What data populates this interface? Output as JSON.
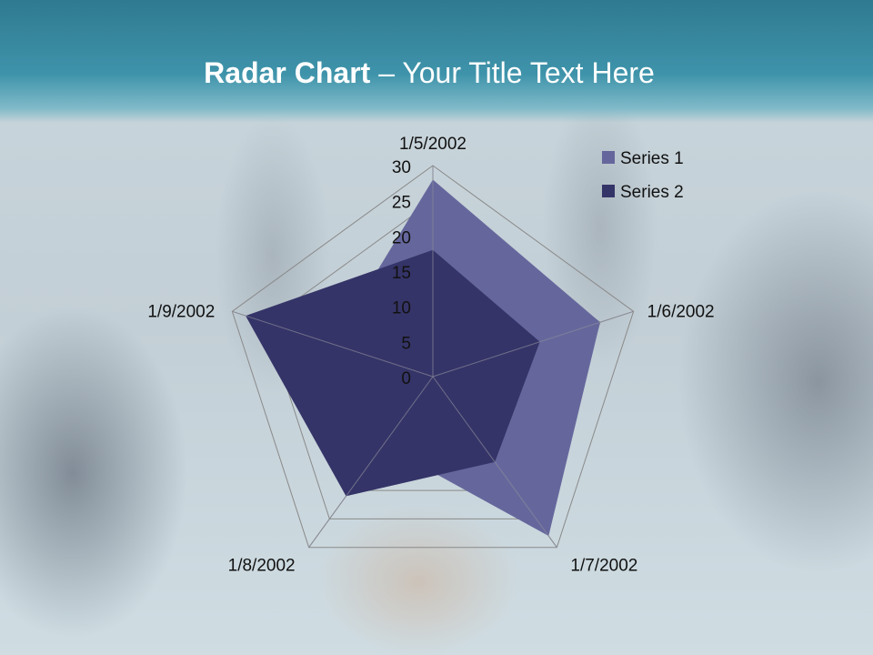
{
  "slide": {
    "title_bold": "Radar Chart",
    "title_rest": " – Your Title Text Here"
  },
  "chart_data": {
    "type": "radar",
    "categories": [
      "1/5/2002",
      "1/6/2002",
      "1/7/2002",
      "1/8/2002",
      "1/9/2002"
    ],
    "series": [
      {
        "name": "Series 1",
        "values": [
          28,
          25,
          28,
          12,
          15
        ],
        "color": "#65679c"
      },
      {
        "name": "Series 2",
        "values": [
          18,
          16,
          15,
          21,
          28
        ],
        "color": "#353468"
      }
    ],
    "rlim": [
      0,
      30
    ],
    "ticks": [
      "0",
      "5",
      "10",
      "15",
      "20",
      "25",
      "30"
    ],
    "grid": true,
    "legend": "top-right"
  }
}
